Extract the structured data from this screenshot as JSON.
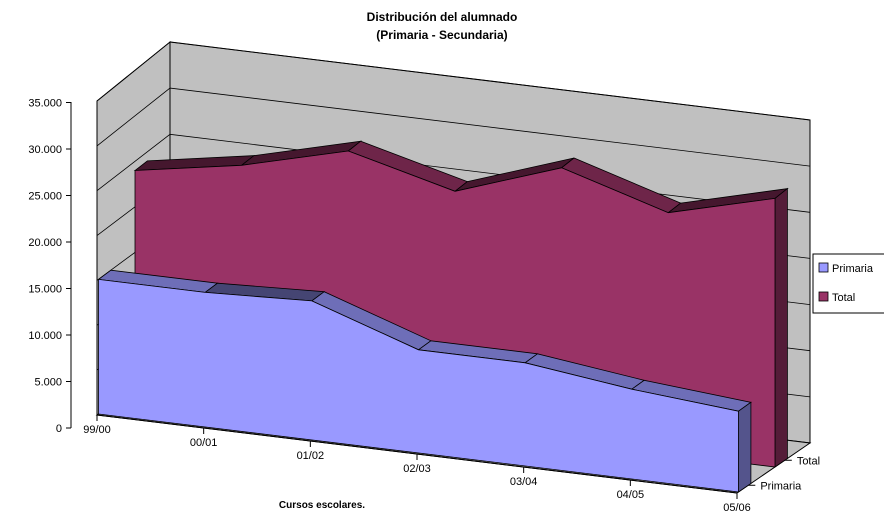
{
  "chart_data": {
    "type": "area",
    "view": "3d",
    "title": "Distribución del alumnado",
    "subtitle": "(Primaria - Secundaria)",
    "xlabel": "Cursos escolares.",
    "ylabel": "",
    "categories": [
      "99/00",
      "00/01",
      "01/02",
      "02/03",
      "03/04",
      "04/05",
      "05/06"
    ],
    "y_ticks": [
      "0",
      "5.000",
      "10.000",
      "15.000",
      "20.000",
      "25.000",
      "30.000",
      "35.000"
    ],
    "ylim": [
      0,
      35000
    ],
    "depth_labels": [
      "Primaria",
      "Total"
    ],
    "series": [
      {
        "name": "Primaria",
        "color": "#9999ff",
        "values": [
          15000,
          15000,
          15500,
          11500,
          11500,
          10000,
          9000
        ]
      },
      {
        "name": "Total",
        "color": "#993366",
        "values": [
          24000,
          26000,
          29000,
          26000,
          30000,
          26500,
          29500
        ]
      }
    ],
    "legend": {
      "position": "right",
      "entries": [
        "Primaria",
        "Total"
      ]
    },
    "grid": true,
    "wall_color": "#c0c0c0"
  }
}
